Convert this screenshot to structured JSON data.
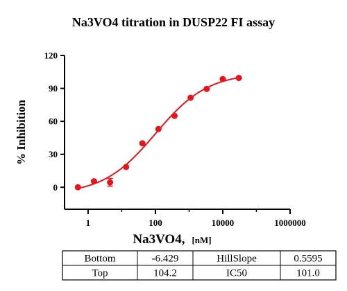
{
  "chart_data": {
    "type": "scatter",
    "title": "Na3VO4 titration in DUSP22 FI assay",
    "xlabel": "Na3VO4,",
    "xlabel_unit": "[nM]",
    "ylabel": "% Inhibition",
    "x_scale": "log",
    "xlim": [
      0.2,
      1000000
    ],
    "ylim": [
      -20,
      120
    ],
    "x_ticks": [
      1,
      100,
      10000,
      1000000
    ],
    "x_tick_labels": [
      "1",
      "100",
      "10000",
      "1000000"
    ],
    "y_ticks": [
      0,
      30,
      60,
      90,
      120
    ],
    "y_tick_labels": [
      "0",
      "30",
      "60",
      "90",
      "120"
    ],
    "grid": false,
    "legend": "none",
    "series": [
      {
        "color": "#e8141c",
        "marker": "circle",
        "points": [
          {
            "x": 0.5,
            "y": 0.0,
            "err": 0
          },
          {
            "x": 1.5,
            "y": 5.5,
            "err": 0
          },
          {
            "x": 4.5,
            "y": 4.5,
            "err": 3.5
          },
          {
            "x": 13.5,
            "y": 18.5,
            "err": 0
          },
          {
            "x": 41,
            "y": 40.0,
            "err": 0
          },
          {
            "x": 123,
            "y": 53.0,
            "err": 0
          },
          {
            "x": 370,
            "y": 65.0,
            "err": 0
          },
          {
            "x": 1111,
            "y": 81.5,
            "err": 0
          },
          {
            "x": 3333,
            "y": 89.5,
            "err": 0
          },
          {
            "x": 10000,
            "y": 98.5,
            "err": 0
          },
          {
            "x": 30000,
            "y": 99.5,
            "err": 0
          }
        ]
      }
    ],
    "fit": {
      "model": "4PL",
      "color": "#e8141c",
      "bottom": -6.429,
      "top": 104.2,
      "hillslope": 0.5595,
      "ic50": 101.0,
      "x_range": [
        0.5,
        30000
      ]
    },
    "params_table": {
      "rows": [
        [
          "Bottom",
          "-6.429",
          "HillSlope",
          "0.5595"
        ],
        [
          "Top",
          "104.2",
          "IC50",
          "101.0"
        ]
      ]
    }
  }
}
